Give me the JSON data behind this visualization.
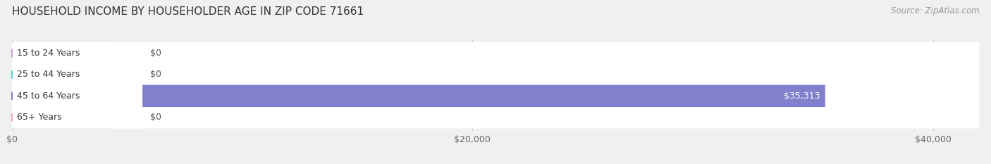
{
  "title": "HOUSEHOLD INCOME BY HOUSEHOLDER AGE IN ZIP CODE 71661",
  "source": "Source: ZipAtlas.com",
  "categories": [
    "15 to 24 Years",
    "25 to 44 Years",
    "45 to 64 Years",
    "65+ Years"
  ],
  "values": [
    0,
    0,
    35313,
    0
  ],
  "bar_colors": [
    "#c9a8d4",
    "#5ecfbf",
    "#8080cc",
    "#f4a8c0"
  ],
  "bar_labels": [
    "$0",
    "$0",
    "$35,313",
    "$0"
  ],
  "xlim": [
    0,
    42000
  ],
  "xticks": [
    0,
    20000,
    40000
  ],
  "xticklabels": [
    "$0",
    "$20,000",
    "$40,000"
  ],
  "background_color": "#f0f0f0",
  "title_fontsize": 11,
  "source_fontsize": 8.5,
  "label_fontsize": 9,
  "tick_fontsize": 9
}
